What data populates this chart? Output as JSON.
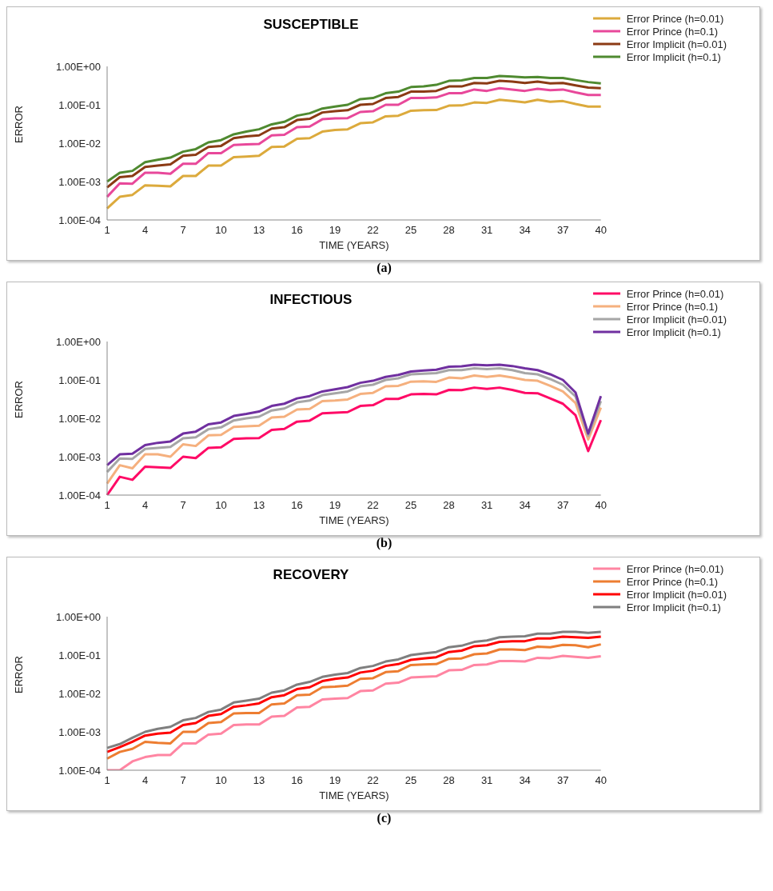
{
  "chart_data": [
    {
      "type": "line",
      "title": "SUSCEPTIBLE",
      "xlabel": "TIME (YEARS)",
      "ylabel": "ERROR",
      "annotations": [
        "(a)"
      ],
      "log": "y",
      "legend": "top right",
      "line_style": "solid",
      "categories": [
        "1",
        null,
        null,
        "4",
        null,
        null,
        "7",
        null,
        null,
        "10",
        null,
        null,
        "13",
        null,
        null,
        "16",
        null,
        null,
        "19",
        null,
        null,
        "22",
        null,
        null,
        "25",
        null,
        null,
        "28",
        null,
        null,
        "31",
        null,
        null,
        "34",
        null,
        null,
        "37",
        null,
        null,
        "40"
      ],
      "ylim": [
        0.0001,
        1
      ],
      "yticks": [
        {
          "value": 0.0001,
          "label": "1.00E-04"
        },
        {
          "value": 0.001,
          "label": "1.00E-03"
        },
        {
          "value": 0.01,
          "label": "1.00E-02"
        },
        {
          "value": 0.1,
          "label": "1.00E-01"
        },
        {
          "value": 1,
          "label": "1.00E+00"
        }
      ],
      "series": [
        {
          "name": "Error Prince (h=0.01)",
          "color": "#dcaa3c",
          "values": [
            0.0002,
            0.0004,
            0.00045,
            0.0008,
            0.00078,
            0.00075,
            0.0014,
            0.0014,
            0.0026,
            0.0026,
            0.0043,
            0.0045,
            0.0047,
            0.008,
            0.0082,
            0.013,
            0.0135,
            0.02,
            0.022,
            0.023,
            0.033,
            0.035,
            0.05,
            0.052,
            0.07,
            0.072,
            0.073,
            0.095,
            0.096,
            0.115,
            0.112,
            0.135,
            0.125,
            0.115,
            0.135,
            0.12,
            0.125,
            0.105,
            0.09,
            0.09
          ]
        },
        {
          "name": "Error Prince (h=0.1)",
          "color": "#e8489a",
          "values": [
            0.0004,
            0.0009,
            0.00088,
            0.0017,
            0.0017,
            0.0016,
            0.0029,
            0.0029,
            0.0055,
            0.0055,
            0.009,
            0.0093,
            0.0095,
            0.016,
            0.0165,
            0.026,
            0.027,
            0.042,
            0.044,
            0.045,
            0.065,
            0.068,
            0.1,
            0.1,
            0.15,
            0.15,
            0.155,
            0.2,
            0.2,
            0.25,
            0.23,
            0.27,
            0.25,
            0.23,
            0.26,
            0.24,
            0.25,
            0.21,
            0.18,
            0.18
          ]
        },
        {
          "name": "Error Implicit (h=0.01)",
          "color": "#8b3a14",
          "values": [
            0.0007,
            0.0013,
            0.0014,
            0.0024,
            0.0026,
            0.0028,
            0.0047,
            0.005,
            0.008,
            0.0085,
            0.0135,
            0.015,
            0.016,
            0.024,
            0.026,
            0.04,
            0.043,
            0.063,
            0.068,
            0.072,
            0.1,
            0.105,
            0.15,
            0.16,
            0.22,
            0.22,
            0.23,
            0.3,
            0.3,
            0.37,
            0.36,
            0.42,
            0.4,
            0.37,
            0.4,
            0.36,
            0.37,
            0.32,
            0.28,
            0.27
          ]
        },
        {
          "name": "Error Implicit (h=0.1)",
          "color": "#4f8a30",
          "values": [
            0.001,
            0.0017,
            0.0019,
            0.0032,
            0.0037,
            0.0042,
            0.006,
            0.007,
            0.0105,
            0.012,
            0.017,
            0.02,
            0.023,
            0.031,
            0.036,
            0.052,
            0.06,
            0.08,
            0.09,
            0.1,
            0.14,
            0.15,
            0.2,
            0.22,
            0.29,
            0.3,
            0.33,
            0.42,
            0.43,
            0.5,
            0.5,
            0.56,
            0.54,
            0.52,
            0.53,
            0.5,
            0.5,
            0.44,
            0.39,
            0.36
          ]
        }
      ]
    },
    {
      "type": "line",
      "title": "INFECTIOUS",
      "xlabel": "TIME (YEARS)",
      "ylabel": "ERROR",
      "annotations": [
        "(b)"
      ],
      "log": "y",
      "legend": "top right",
      "line_style": "solid",
      "categories": [
        "1",
        null,
        null,
        "4",
        null,
        null,
        "7",
        null,
        null,
        "10",
        null,
        null,
        "13",
        null,
        null,
        "16",
        null,
        null,
        "19",
        null,
        null,
        "22",
        null,
        null,
        "25",
        null,
        null,
        "28",
        null,
        null,
        "31",
        null,
        null,
        "34",
        null,
        null,
        "37",
        null,
        null,
        "40"
      ],
      "ylim": [
        0.0001,
        1
      ],
      "yticks": [
        {
          "value": 0.0001,
          "label": "1.00E-04"
        },
        {
          "value": 0.001,
          "label": "1.00E-03"
        },
        {
          "value": 0.01,
          "label": "1.00E-02"
        },
        {
          "value": 0.1,
          "label": "1.00E-01"
        },
        {
          "value": 1,
          "label": "1.00E+00"
        }
      ],
      "series": [
        {
          "name": "Error Prince (h=0.01)",
          "color": "#ff0a66",
          "values": [
            0.0001,
            0.0003,
            0.00025,
            0.00055,
            0.00053,
            0.00051,
            0.001,
            0.00092,
            0.0017,
            0.00175,
            0.0029,
            0.003,
            0.00305,
            0.005,
            0.0053,
            0.0082,
            0.0087,
            0.0135,
            0.014,
            0.0145,
            0.021,
            0.022,
            0.032,
            0.032,
            0.042,
            0.043,
            0.042,
            0.055,
            0.054,
            0.063,
            0.058,
            0.063,
            0.055,
            0.046,
            0.045,
            0.033,
            0.024,
            0.012,
            0.0014,
            0.009
          ]
        },
        {
          "name": "Error Prince (h=0.1)",
          "color": "#f5b07e",
          "values": [
            0.0002,
            0.0006,
            0.0005,
            0.00115,
            0.00115,
            0.001,
            0.0021,
            0.0019,
            0.0036,
            0.0037,
            0.006,
            0.0062,
            0.0064,
            0.0105,
            0.011,
            0.017,
            0.0175,
            0.028,
            0.029,
            0.031,
            0.043,
            0.046,
            0.068,
            0.07,
            0.09,
            0.092,
            0.089,
            0.115,
            0.11,
            0.13,
            0.12,
            0.13,
            0.115,
            0.1,
            0.095,
            0.07,
            0.05,
            0.025,
            0.0028,
            0.019
          ]
        },
        {
          "name": "Error Implicit (h=0.01)",
          "color": "#a6a6a6",
          "values": [
            0.0004,
            0.0009,
            0.00088,
            0.0016,
            0.0017,
            0.0018,
            0.003,
            0.0032,
            0.0052,
            0.0058,
            0.0088,
            0.01,
            0.011,
            0.016,
            0.018,
            0.026,
            0.029,
            0.04,
            0.045,
            0.05,
            0.068,
            0.075,
            0.1,
            0.11,
            0.14,
            0.145,
            0.15,
            0.18,
            0.18,
            0.2,
            0.19,
            0.2,
            0.18,
            0.15,
            0.14,
            0.105,
            0.075,
            0.037,
            0.0035,
            0.028
          ]
        },
        {
          "name": "Error Implicit (h=0.1)",
          "color": "#7030a0",
          "values": [
            0.0006,
            0.00115,
            0.0012,
            0.002,
            0.0023,
            0.0025,
            0.004,
            0.0045,
            0.007,
            0.0078,
            0.0115,
            0.013,
            0.015,
            0.021,
            0.024,
            0.033,
            0.038,
            0.05,
            0.057,
            0.065,
            0.084,
            0.095,
            0.12,
            0.135,
            0.165,
            0.175,
            0.185,
            0.22,
            0.225,
            0.25,
            0.24,
            0.25,
            0.23,
            0.2,
            0.18,
            0.14,
            0.1,
            0.047,
            0.004,
            0.038
          ]
        }
      ]
    },
    {
      "type": "line",
      "title": "RECOVERY",
      "xlabel": "TIME (YEARS)",
      "ylabel": "ERROR",
      "annotations": [
        "(c)"
      ],
      "log": "y",
      "legend": "top right",
      "line_style": "solid",
      "categories": [
        "1",
        null,
        null,
        "4",
        null,
        null,
        "7",
        null,
        null,
        "10",
        null,
        null,
        "13",
        null,
        null,
        "16",
        null,
        null,
        "19",
        null,
        null,
        "22",
        null,
        null,
        "25",
        null,
        null,
        "28",
        null,
        null,
        "31",
        null,
        null,
        "34",
        null,
        null,
        "37",
        null,
        null,
        "40"
      ],
      "ylim": [
        0.0001,
        1
      ],
      "yticks": [
        {
          "value": 0.0001,
          "label": "1.00E-04"
        },
        {
          "value": 0.001,
          "label": "1.00E-03"
        },
        {
          "value": 0.01,
          "label": "1.00E-02"
        },
        {
          "value": 0.1,
          "label": "1.00E-01"
        },
        {
          "value": 1,
          "label": "1.00E+00"
        }
      ],
      "series": [
        {
          "name": "Error Prince (h=0.01)",
          "color": "#ff85a2",
          "values": [
            0.0001,
            0.0001,
            0.00017,
            0.00022,
            0.00025,
            0.00025,
            0.0005,
            0.0005,
            0.00085,
            0.0009,
            0.0015,
            0.00155,
            0.00155,
            0.0025,
            0.0026,
            0.0043,
            0.0045,
            0.007,
            0.0073,
            0.0076,
            0.0115,
            0.012,
            0.018,
            0.019,
            0.026,
            0.027,
            0.028,
            0.04,
            0.041,
            0.055,
            0.057,
            0.07,
            0.07,
            0.068,
            0.085,
            0.083,
            0.095,
            0.09,
            0.085,
            0.093
          ]
        },
        {
          "name": "Error Prince (h=0.1)",
          "color": "#ed7d31",
          "values": [
            0.0002,
            0.0003,
            0.00036,
            0.00055,
            0.00052,
            0.0005,
            0.001,
            0.001,
            0.0017,
            0.0018,
            0.003,
            0.0031,
            0.0031,
            0.0052,
            0.0055,
            0.009,
            0.0093,
            0.0145,
            0.015,
            0.016,
            0.024,
            0.025,
            0.036,
            0.038,
            0.055,
            0.057,
            0.058,
            0.08,
            0.082,
            0.105,
            0.11,
            0.14,
            0.14,
            0.135,
            0.165,
            0.16,
            0.185,
            0.18,
            0.16,
            0.19
          ]
        },
        {
          "name": "Error Implicit (h=0.01)",
          "color": "#ff0000",
          "values": [
            0.0003,
            0.0004,
            0.00055,
            0.0008,
            0.0009,
            0.00095,
            0.0015,
            0.0017,
            0.0026,
            0.0029,
            0.0045,
            0.0049,
            0.0055,
            0.008,
            0.009,
            0.013,
            0.0145,
            0.021,
            0.024,
            0.026,
            0.035,
            0.039,
            0.052,
            0.058,
            0.075,
            0.082,
            0.088,
            0.12,
            0.13,
            0.17,
            0.18,
            0.22,
            0.23,
            0.23,
            0.27,
            0.27,
            0.3,
            0.29,
            0.28,
            0.3
          ]
        },
        {
          "name": "Error Implicit (h=0.1)",
          "color": "#7f7f7f",
          "values": [
            0.00038,
            0.00048,
            0.0007,
            0.001,
            0.0012,
            0.00135,
            0.002,
            0.0023,
            0.0033,
            0.0038,
            0.0058,
            0.0065,
            0.0073,
            0.0105,
            0.012,
            0.017,
            0.02,
            0.027,
            0.031,
            0.034,
            0.046,
            0.052,
            0.068,
            0.077,
            0.1,
            0.11,
            0.12,
            0.16,
            0.175,
            0.22,
            0.24,
            0.29,
            0.3,
            0.31,
            0.36,
            0.36,
            0.4,
            0.4,
            0.38,
            0.4
          ]
        }
      ]
    }
  ]
}
